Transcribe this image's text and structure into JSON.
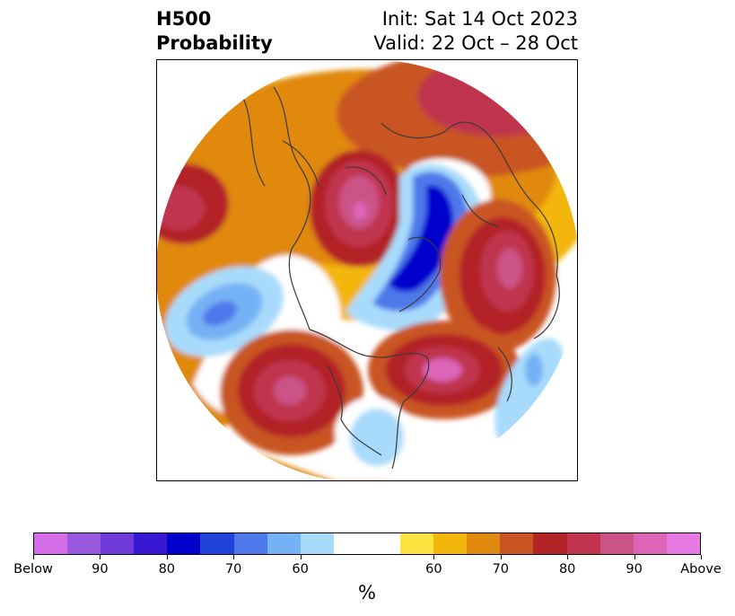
{
  "header": {
    "title_line1": "H500",
    "title_line2": "Probability",
    "init": "Init: Sat 14 Oct 2023",
    "valid": "Valid: 22 Oct – 28 Oct"
  },
  "map": {
    "projection": "north-polar-stereographic",
    "variable": "500 hPa height probability",
    "anomalies": [
      {
        "region": "northeast-pacific-west",
        "category": "above",
        "probability": 80
      },
      {
        "region": "alaska-yukon",
        "category": "above",
        "probability": 90
      },
      {
        "region": "arctic-ocean-greenland",
        "category": "below",
        "probability": 80
      },
      {
        "region": "siberia-north-asia",
        "category": "above",
        "probability": 90
      },
      {
        "region": "north-pacific-central",
        "category": "below",
        "probability": 60
      },
      {
        "region": "eastern-north-atlantic",
        "category": "above",
        "probability": 90
      },
      {
        "region": "western-north-america",
        "category": "above",
        "probability": 85
      },
      {
        "region": "eastern-united-states",
        "category": "below",
        "probability": 60
      },
      {
        "region": "central-atlantic",
        "category": "below",
        "probability": 60
      }
    ]
  },
  "colorbar": {
    "colors": [
      "#d56de8",
      "#9b58e1",
      "#6f3ad9",
      "#3818d3",
      "#0000cc",
      "#2143dc",
      "#4e79ea",
      "#75b1f5",
      "#a8dbfb",
      "#ffffff",
      "#ffffff",
      "#fee240",
      "#f3b60a",
      "#e0890f",
      "#c95522",
      "#b22426",
      "#c0354d",
      "#cc5288",
      "#dc65b8",
      "#e779e2"
    ],
    "tick_labels": [
      "Below",
      "90",
      "80",
      "70",
      "60",
      "60",
      "70",
      "80",
      "90",
      "Above"
    ],
    "unit_label": "%"
  }
}
